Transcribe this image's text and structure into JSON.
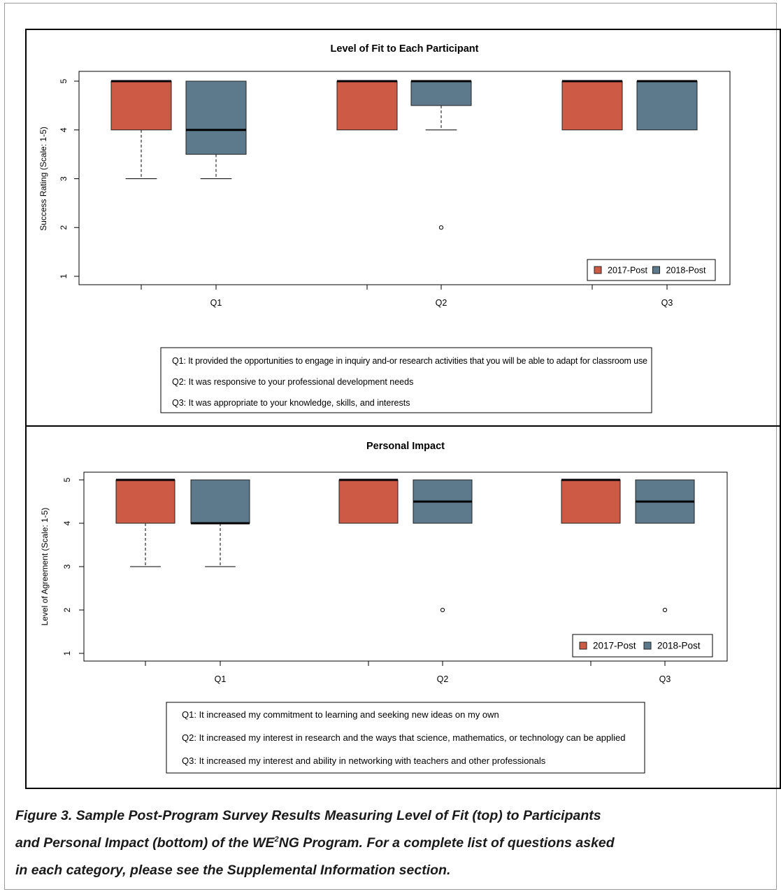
{
  "colors": {
    "y2017": "#cd5a45",
    "y2018": "#5d7a8c"
  },
  "charts": [
    {
      "title": "Level of Fit to Each Participant",
      "ylabel": "Success Rating (Scale: 1-5)",
      "yticks": [
        "1",
        "2",
        "3",
        "4",
        "5"
      ],
      "categories": [
        "Q1",
        "Q2",
        "Q3"
      ],
      "legend": [
        "2017-Post",
        "2018-Post"
      ],
      "notes": [
        "Q1: It provided the opportunities to engage in inquiry and-or research activities that you will be able to adapt for classroom use",
        "Q2: It was responsive to your professional development needs",
        "Q3: It was appropriate to your knowledge, skills, and interests"
      ]
    },
    {
      "title": "Personal Impact",
      "ylabel": "Level of Agreement (Scale: 1-5)",
      "yticks": [
        "1",
        "2",
        "3",
        "4",
        "5"
      ],
      "categories": [
        "Q1",
        "Q2",
        "Q3"
      ],
      "legend": [
        "2017-Post",
        "2018-Post"
      ],
      "notes": [
        "Q1: It increased my commitment to learning and seeking new ideas on my own",
        "Q2: It increased my interest in research and the ways that science, mathematics, or technology can be applied",
        "Q3: It increased my interest and ability in networking with teachers and other professionals"
      ]
    }
  ],
  "chart_data": [
    {
      "type": "box",
      "title": "Level of Fit to Each Participant",
      "ylabel": "Success Rating (Scale: 1-5)",
      "ylim": [
        1,
        5
      ],
      "categories": [
        "Q1",
        "Q2",
        "Q3"
      ],
      "legend_position": "bottom-right",
      "series": [
        {
          "name": "2017-Post",
          "boxes": [
            {
              "whisker_low": 3,
              "q1": 4,
              "median": 5,
              "q3": 5,
              "whisker_high": 5,
              "outliers": []
            },
            {
              "whisker_low": 4,
              "q1": 4,
              "median": 5,
              "q3": 5,
              "whisker_high": 5,
              "outliers": []
            },
            {
              "whisker_low": 4,
              "q1": 4,
              "median": 5,
              "q3": 5,
              "whisker_high": 5,
              "outliers": []
            }
          ]
        },
        {
          "name": "2018-Post",
          "boxes": [
            {
              "whisker_low": 3,
              "q1": 3.5,
              "median": 4,
              "q3": 5,
              "whisker_high": 5,
              "outliers": []
            },
            {
              "whisker_low": 4,
              "q1": 4.5,
              "median": 5,
              "q3": 5,
              "whisker_high": 5,
              "outliers": [
                2
              ]
            },
            {
              "whisker_low": 4,
              "q1": 4,
              "median": 5,
              "q3": 5,
              "whisker_high": 5,
              "outliers": []
            }
          ]
        }
      ]
    },
    {
      "type": "box",
      "title": "Personal Impact",
      "ylabel": "Level of Agreement (Scale: 1-5)",
      "ylim": [
        1,
        5
      ],
      "categories": [
        "Q1",
        "Q2",
        "Q3"
      ],
      "legend_position": "bottom-right",
      "series": [
        {
          "name": "2017-Post",
          "boxes": [
            {
              "whisker_low": 3,
              "q1": 4,
              "median": 5,
              "q3": 5,
              "whisker_high": 5,
              "outliers": []
            },
            {
              "whisker_low": 4,
              "q1": 4,
              "median": 5,
              "q3": 5,
              "whisker_high": 5,
              "outliers": []
            },
            {
              "whisker_low": 4,
              "q1": 4,
              "median": 5,
              "q3": 5,
              "whisker_high": 5,
              "outliers": []
            }
          ]
        },
        {
          "name": "2018-Post",
          "boxes": [
            {
              "whisker_low": 3,
              "q1": 4,
              "median": 4,
              "q3": 5,
              "whisker_high": 5,
              "outliers": []
            },
            {
              "whisker_low": 4,
              "q1": 4,
              "median": 4.5,
              "q3": 5,
              "whisker_high": 5,
              "outliers": [
                2
              ]
            },
            {
              "whisker_low": 4,
              "q1": 4,
              "median": 4.5,
              "q3": 5,
              "whisker_high": 5,
              "outliers": [
                2
              ]
            }
          ]
        }
      ]
    }
  ],
  "caption": {
    "line1": "Figure 3. Sample Post-Program Survey Results Measuring Level of Fit (top) to Participants",
    "line2a": "and Personal Impact (bottom) of the WE",
    "line2sup": "2",
    "line2b": "NG Program. For a complete list of questions asked",
    "line3": "in each category, please see the Supplemental Information section."
  }
}
